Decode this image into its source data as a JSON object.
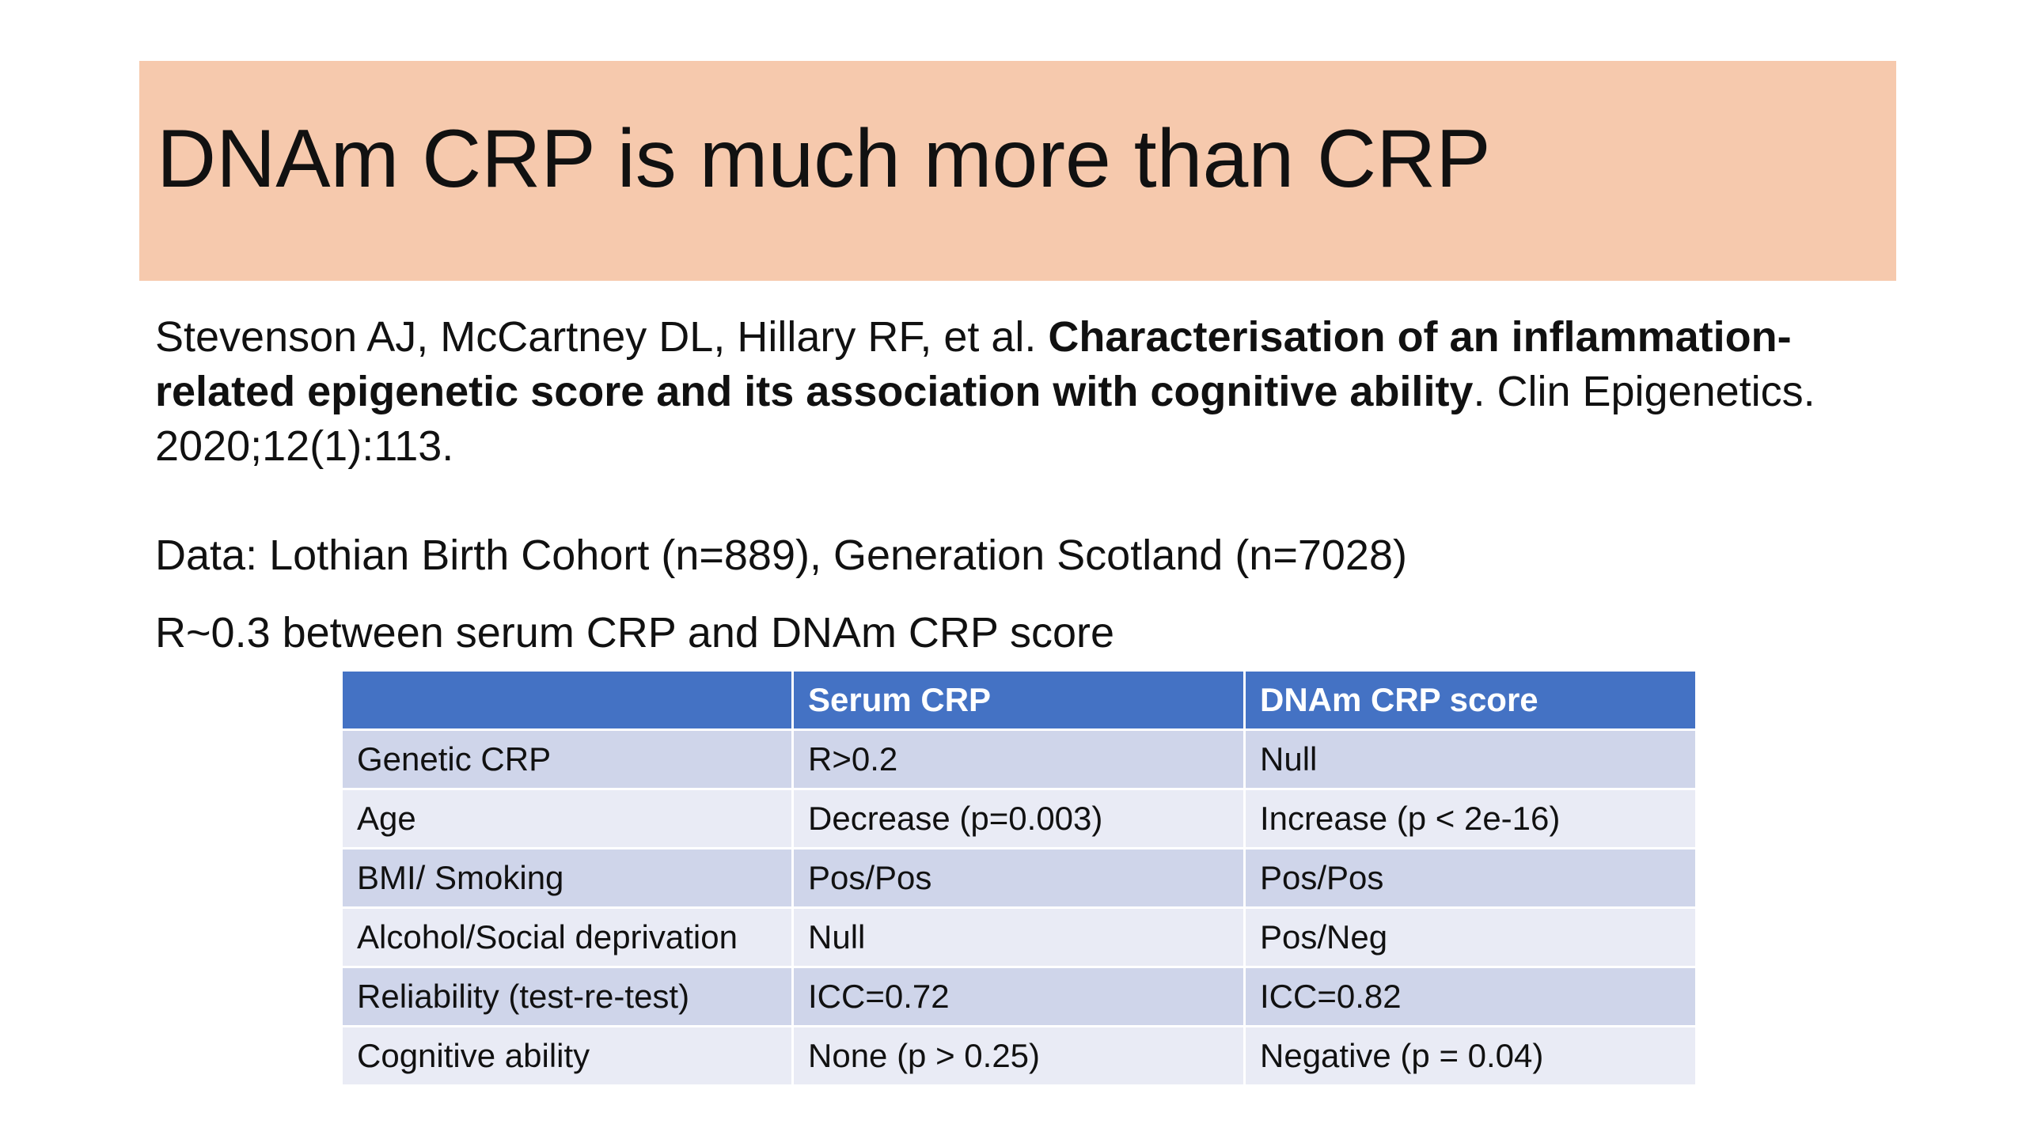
{
  "title": "DNAm CRP is much more than CRP",
  "citation": {
    "authors": "Stevenson AJ, McCartney DL, Hillary RF, et al. ",
    "paper_title": "Characterisation of an inflammation-related epigenetic score and its association with cognitive ability",
    "journal": ". Clin Epigenetics. 2020;12(1):113."
  },
  "data_line": "Data: Lothian Birth Cohort (n=889), Generation Scotland (n=7028)",
  "r_line": "R~0.3 between serum CRP and DNAm CRP score",
  "table": {
    "headers": [
      "",
      "Serum CRP",
      "DNAm CRP score"
    ],
    "rows": [
      [
        "Genetic CRP",
        "R>0.2",
        "Null"
      ],
      [
        "Age",
        "Decrease (p=0.003)",
        "Increase (p < 2e-16)"
      ],
      [
        "BMI/ Smoking",
        "Pos/Pos",
        "Pos/Pos"
      ],
      [
        "Alcohol/Social deprivation",
        "Null",
        "Pos/Neg"
      ],
      [
        "Reliability (test-re-test)",
        "ICC=0.72",
        "ICC=0.82"
      ],
      [
        "Cognitive ability",
        "None (p > 0.25)",
        "Negative (p = 0.04)"
      ]
    ]
  },
  "colors": {
    "title_band": "#f6c9ad",
    "table_header": "#4472c4",
    "row_dark": "#cfd5ea",
    "row_light": "#e9ebf5"
  }
}
